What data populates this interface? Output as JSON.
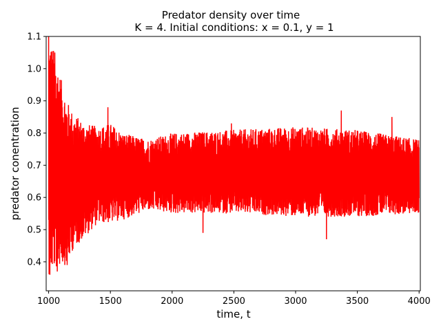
{
  "chart_data": {
    "type": "line",
    "title": "Predator density over time",
    "subtitle": "K = 4. Initial conditions: x = 0.1, y = 1",
    "xlabel": "time, t",
    "ylabel": "predator conentration",
    "xlim": [
      980,
      4010
    ],
    "ylim": [
      0.31,
      1.1
    ],
    "x_ticks": [
      1000,
      1500,
      2000,
      2500,
      3000,
      3500,
      4000
    ],
    "y_ticks": [
      0.4,
      0.5,
      0.6,
      0.7,
      0.8,
      0.9,
      1.0,
      1.1
    ],
    "x_tick_labels": [
      "1000",
      "1500",
      "2000",
      "2500",
      "3000",
      "3500",
      "4000"
    ],
    "y_tick_labels": [
      "0.4",
      "0.5",
      "0.6",
      "0.7",
      "0.8",
      "0.9",
      "1.0",
      "1.1"
    ],
    "grid": false,
    "series": [
      {
        "color": "#ff0000",
        "x_start": 1000,
        "x_end": 4000,
        "envelope": [
          {
            "x": 1000,
            "lower": 0.36,
            "upper": 1.1
          },
          {
            "x": 1050,
            "lower": 0.37,
            "upper": 1.05
          },
          {
            "x": 1100,
            "lower": 0.39,
            "upper": 0.97
          },
          {
            "x": 1150,
            "lower": 0.39,
            "upper": 0.9
          },
          {
            "x": 1200,
            "lower": 0.44,
            "upper": 0.86
          },
          {
            "x": 1300,
            "lower": 0.48,
            "upper": 0.83
          },
          {
            "x": 1400,
            "lower": 0.52,
            "upper": 0.82
          },
          {
            "x": 1500,
            "lower": 0.52,
            "upper": 0.83
          },
          {
            "x": 1600,
            "lower": 0.53,
            "upper": 0.8
          },
          {
            "x": 1800,
            "lower": 0.56,
            "upper": 0.78
          },
          {
            "x": 2000,
            "lower": 0.55,
            "upper": 0.8
          },
          {
            "x": 2500,
            "lower": 0.55,
            "upper": 0.81
          },
          {
            "x": 3000,
            "lower": 0.54,
            "upper": 0.82
          },
          {
            "x": 3500,
            "lower": 0.54,
            "upper": 0.81
          },
          {
            "x": 4000,
            "lower": 0.55,
            "upper": 0.78
          }
        ],
        "peaks": [
          {
            "x": 1000,
            "y": 1.1
          },
          {
            "x": 1050,
            "y": 1.05
          },
          {
            "x": 1480,
            "y": 0.88
          },
          {
            "x": 2480,
            "y": 0.83
          },
          {
            "x": 3370,
            "y": 0.87
          },
          {
            "x": 3780,
            "y": 0.85
          }
        ],
        "troughs": [
          {
            "x": 1010,
            "y": 0.36
          },
          {
            "x": 1070,
            "y": 0.37
          },
          {
            "x": 1150,
            "y": 0.39
          },
          {
            "x": 1250,
            "y": 0.47
          },
          {
            "x": 2250,
            "y": 0.49
          },
          {
            "x": 3250,
            "y": 0.47
          }
        ]
      }
    ]
  }
}
